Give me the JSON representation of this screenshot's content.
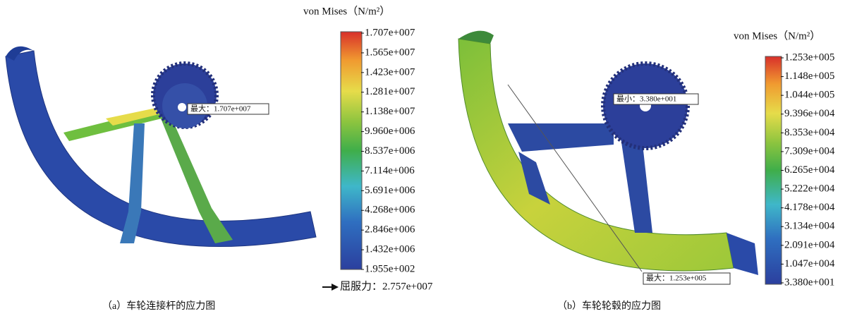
{
  "panel_a": {
    "legend_title": "von Mises（N/m²）",
    "legend_labels": [
      "1.707e+007",
      "1.565e+007",
      "1.423e+007",
      "1.281e+007",
      "1.138e+007",
      "9.960e+006",
      "8.537e+006",
      "7.114e+006",
      "5.691e+006",
      "4.268e+006",
      "2.846e+006",
      "1.432e+006",
      "1.955e+002"
    ],
    "max_annotation": "最大：1.707e+007",
    "yield_note": "屈服力：2.757e+007",
    "caption": "（a）车轮连接杆的应力图"
  },
  "panel_b": {
    "legend_title": "von Mises（N/m²）",
    "legend_labels": [
      "1.253e+005",
      "1.148e+005",
      "1.044e+005",
      "9.396e+004",
      "8.353e+004",
      "7.309e+004",
      "6.265e+004",
      "5.222e+004",
      "4.178e+004",
      "3.134e+004",
      "2.091e+004",
      "1.047e+004",
      "3.380e+001"
    ],
    "min_annotation": "最小：3.380e+001",
    "max_annotation": "最大：1.253e+005",
    "caption": "（b）车轮轮毂的应力图"
  }
}
